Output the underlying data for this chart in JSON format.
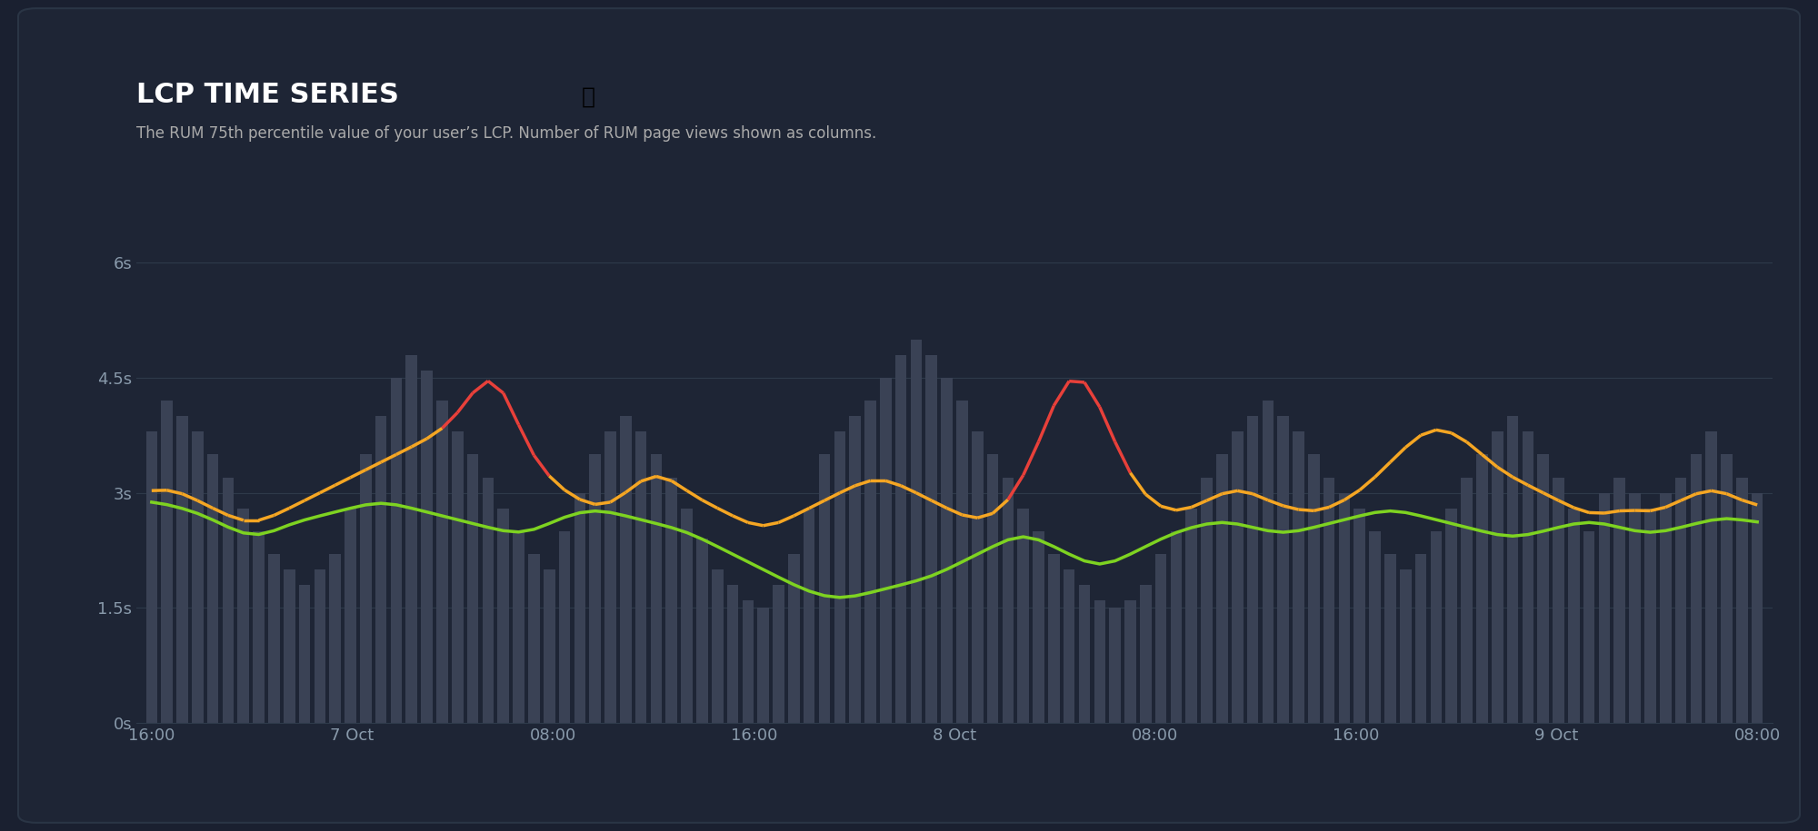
{
  "title": "LCP TIME SERIES",
  "subtitle": "The RUM 75th percentile value of your user’s LCP. Number of RUM page views shown as columns.",
  "bg_color": "#1a2030",
  "panel_color": "#1e2535",
  "text_color": "#ffffff",
  "subtitle_color": "#aaaaaa",
  "yticks": [
    0,
    1.5,
    3,
    4.5,
    6
  ],
  "ytick_labels": [
    "0s",
    "1.5s",
    "3s",
    "4.5s",
    "6s"
  ],
  "ylim": [
    0,
    6.5
  ],
  "xtick_labels": [
    "16:00",
    "7 Oct",
    "08:00",
    "16:00",
    "8 Oct",
    "08:00",
    "16:00",
    "9 Oct",
    "08:00"
  ],
  "bar_color": "#3a4255",
  "bar_heights": [
    3.8,
    4.2,
    4.0,
    3.8,
    3.5,
    3.2,
    2.8,
    2.5,
    2.2,
    2.0,
    1.8,
    2.0,
    2.2,
    2.8,
    3.5,
    4.0,
    4.5,
    4.8,
    4.6,
    4.2,
    3.8,
    3.5,
    3.2,
    2.8,
    2.5,
    2.2,
    2.0,
    2.5,
    3.0,
    3.5,
    3.8,
    4.0,
    3.8,
    3.5,
    3.2,
    2.8,
    2.4,
    2.0,
    1.8,
    1.6,
    1.5,
    1.8,
    2.2,
    2.8,
    3.5,
    3.8,
    4.0,
    4.2,
    4.5,
    4.8,
    5.0,
    4.8,
    4.5,
    4.2,
    3.8,
    3.5,
    3.2,
    2.8,
    2.5,
    2.2,
    2.0,
    1.8,
    1.6,
    1.5,
    1.6,
    1.8,
    2.2,
    2.5,
    2.8,
    3.2,
    3.5,
    3.8,
    4.0,
    4.2,
    4.0,
    3.8,
    3.5,
    3.2,
    3.0,
    2.8,
    2.5,
    2.2,
    2.0,
    2.2,
    2.5,
    2.8,
    3.2,
    3.5,
    3.8,
    4.0,
    3.8,
    3.5,
    3.2,
    2.8,
    2.5,
    3.0,
    3.2,
    3.0,
    2.8,
    3.0,
    3.2,
    3.5,
    3.8,
    3.5,
    3.2,
    3.0
  ],
  "orange_line": [
    3.0,
    3.1,
    3.0,
    2.9,
    2.8,
    2.7,
    2.6,
    2.6,
    2.7,
    2.8,
    2.9,
    3.0,
    3.1,
    3.2,
    3.3,
    3.4,
    3.5,
    3.6,
    3.7,
    3.8,
    4.0,
    4.3,
    4.7,
    4.5,
    3.8,
    3.4,
    3.2,
    3.0,
    2.9,
    2.8,
    2.8,
    3.0,
    3.2,
    3.3,
    3.2,
    3.0,
    2.9,
    2.8,
    2.7,
    2.6,
    2.5,
    2.6,
    2.7,
    2.8,
    2.9,
    3.0,
    3.1,
    3.2,
    3.2,
    3.1,
    3.0,
    2.9,
    2.8,
    2.7,
    2.6,
    2.7,
    2.8,
    3.2,
    3.6,
    4.2,
    4.7,
    4.6,
    4.2,
    3.6,
    3.2,
    2.9,
    2.8,
    2.7,
    2.8,
    2.9,
    3.0,
    3.1,
    3.0,
    2.9,
    2.8,
    2.8,
    2.7,
    2.8,
    2.9,
    3.0,
    3.2,
    3.4,
    3.6,
    3.8,
    3.9,
    3.8,
    3.7,
    3.5,
    3.3,
    3.2,
    3.1,
    3.0,
    2.9,
    2.8,
    2.7,
    2.7,
    2.8,
    2.8,
    2.7,
    2.8,
    2.9,
    3.0,
    3.1,
    3.0,
    2.9,
    2.8
  ],
  "green_line": [
    2.9,
    2.85,
    2.8,
    2.75,
    2.65,
    2.55,
    2.45,
    2.4,
    2.5,
    2.6,
    2.65,
    2.7,
    2.75,
    2.8,
    2.85,
    2.9,
    2.85,
    2.8,
    2.75,
    2.7,
    2.65,
    2.6,
    2.55,
    2.5,
    2.45,
    2.5,
    2.6,
    2.7,
    2.75,
    2.8,
    2.75,
    2.7,
    2.65,
    2.6,
    2.55,
    2.5,
    2.4,
    2.3,
    2.2,
    2.1,
    2.0,
    1.9,
    1.8,
    1.7,
    1.65,
    1.6,
    1.65,
    1.7,
    1.75,
    1.8,
    1.85,
    1.9,
    2.0,
    2.1,
    2.2,
    2.3,
    2.4,
    2.5,
    2.4,
    2.3,
    2.2,
    2.1,
    2.0,
    2.1,
    2.2,
    2.3,
    2.4,
    2.5,
    2.55,
    2.6,
    2.65,
    2.6,
    2.55,
    2.5,
    2.45,
    2.5,
    2.55,
    2.6,
    2.65,
    2.7,
    2.75,
    2.8,
    2.75,
    2.7,
    2.65,
    2.6,
    2.55,
    2.5,
    2.45,
    2.4,
    2.45,
    2.5,
    2.55,
    2.6,
    2.65,
    2.6,
    2.55,
    2.5,
    2.45,
    2.5,
    2.55,
    2.6,
    2.65,
    2.7,
    2.65,
    2.6
  ],
  "orange_color": "#f5a623",
  "green_color": "#7ed321",
  "red_color": "#e8403a",
  "grid_color": "#2e3a4a",
  "axis_label_color": "#8899aa",
  "line_width": 2.5
}
